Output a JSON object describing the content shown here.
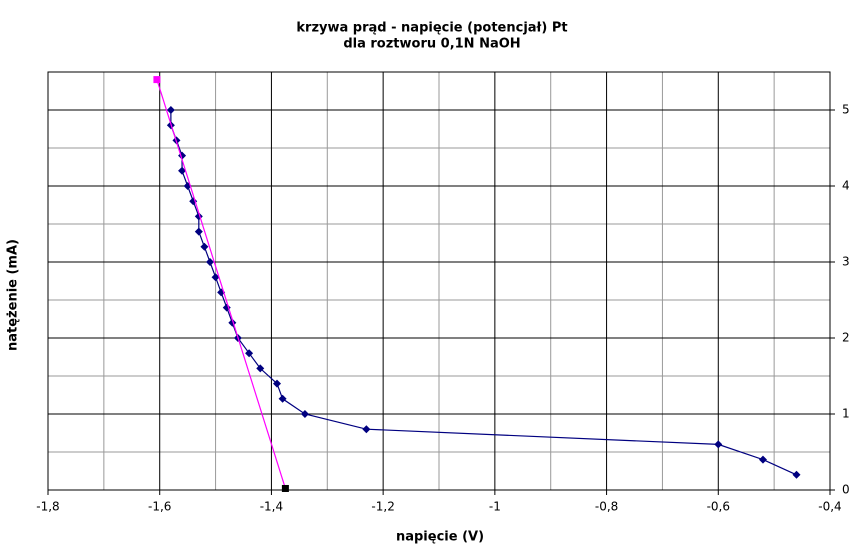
{
  "chart_data": {
    "type": "scatter",
    "title": "krzywa prąd - napięcie (potencjał) Pt",
    "subtitle": "dla roztworu 0,1N NaOH",
    "x_label": "napięcie (V)",
    "y_label": "natężenie (mA)",
    "xlim": [
      -1.8,
      -0.4
    ],
    "ylim": [
      0,
      5.5
    ],
    "xticks": [
      {
        "value": -1.8,
        "label": "-1,8"
      },
      {
        "value": -1.6,
        "label": "-1,6"
      },
      {
        "value": -1.4,
        "label": "-1,4"
      },
      {
        "value": -1.2,
        "label": "-1,2"
      },
      -1,
      {
        "value": -0.8,
        "label": "-0,8"
      },
      {
        "value": -0.6,
        "label": "-0,6"
      },
      {
        "value": -0.4,
        "label": "-0,4"
      }
    ],
    "x_minor_grid": [
      -1.7,
      -1.5,
      -1.3,
      -1.1,
      -0.9,
      -0.7,
      -0.5
    ],
    "yticks": [
      0,
      1,
      2,
      3,
      4,
      5
    ],
    "y_minor_grid": [
      0.5,
      1.5,
      2.5,
      3.5,
      4.5
    ],
    "grid": true,
    "series": [
      {
        "color": "#000080",
        "marker": "diamond",
        "x": [
          -1.58,
          -1.58,
          -1.57,
          -1.56,
          -1.56,
          -1.55,
          -1.54,
          -1.53,
          -1.53,
          -1.52,
          -1.51,
          -1.5,
          -1.49,
          -1.48,
          -1.47,
          -1.46,
          -1.44,
          -1.42,
          -1.39,
          -1.38,
          -1.34,
          -1.23,
          -0.6,
          -0.52,
          -0.46
        ],
        "values": [
          5.0,
          4.8,
          4.6,
          4.4,
          4.2,
          4.0,
          3.8,
          3.6,
          3.4,
          3.2,
          3.0,
          2.8,
          2.6,
          2.4,
          2.2,
          2.0,
          1.8,
          1.6,
          1.4,
          1.2,
          1.0,
          0.8,
          0.6,
          0.4,
          0.2
        ]
      },
      {
        "color": "#ff00ff",
        "marker": "square",
        "marker_colors": [
          "#ff00ff",
          "#000000"
        ],
        "x": [
          -1.605,
          -1.375
        ],
        "values": [
          5.4,
          0.02
        ]
      }
    ]
  }
}
